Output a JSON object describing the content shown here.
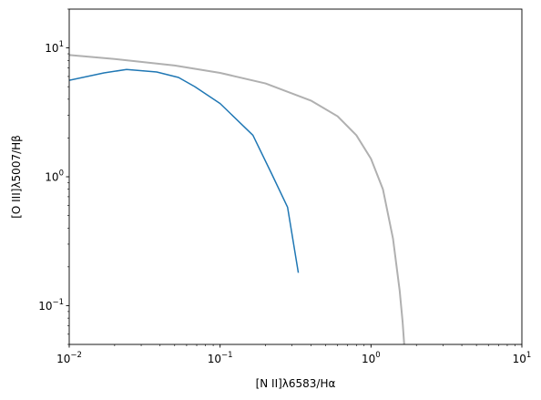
{
  "chart_data": {
    "type": "line",
    "title": "",
    "xlabel": "[N II]λ6583/Hα",
    "ylabel": "[O III]λ5007/Hβ",
    "xscale": "log",
    "yscale": "log",
    "xlim": [
      0.01,
      10
    ],
    "ylim": [
      0.05,
      20
    ],
    "grid": false,
    "x_ticks": [
      {
        "value": 0.01,
        "mantissa": "10",
        "exponent": "−2"
      },
      {
        "value": 0.1,
        "mantissa": "10",
        "exponent": "−1"
      },
      {
        "value": 1,
        "mantissa": "10",
        "exponent": "0"
      },
      {
        "value": 10,
        "mantissa": "10",
        "exponent": "1"
      }
    ],
    "y_ticks": [
      {
        "value": 0.1,
        "mantissa": "10",
        "exponent": "−1"
      },
      {
        "value": 1,
        "mantissa": "10",
        "exponent": "0"
      },
      {
        "value": 10,
        "mantissa": "10",
        "exponent": "1"
      }
    ],
    "series": [
      {
        "color": "#1f77b4",
        "x": [
          0.01,
          0.017,
          0.024,
          0.038,
          0.053,
          0.068,
          0.1,
          0.165,
          0.22,
          0.28,
          0.33
        ],
        "y": [
          5.6,
          6.4,
          6.8,
          6.5,
          5.9,
          5.0,
          3.7,
          2.1,
          1.05,
          0.58,
          0.18
        ]
      },
      {
        "color": "#b0b0b0",
        "x": [
          0.01,
          0.02,
          0.05,
          0.1,
          0.2,
          0.4,
          0.6,
          0.8,
          1.0,
          1.2,
          1.4,
          1.55,
          1.62,
          1.66
        ],
        "y": [
          8.8,
          8.2,
          7.3,
          6.4,
          5.3,
          3.9,
          2.95,
          2.1,
          1.38,
          0.8,
          0.33,
          0.13,
          0.075,
          0.05
        ]
      }
    ]
  }
}
